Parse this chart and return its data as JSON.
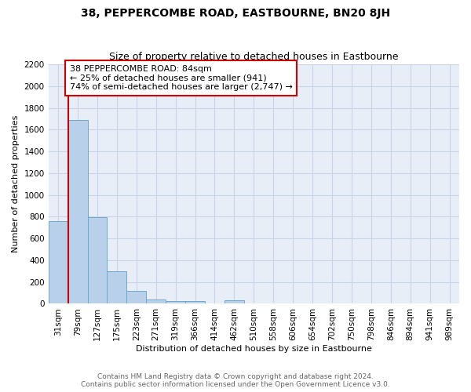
{
  "title": "38, PEPPERCOMBE ROAD, EASTBOURNE, BN20 8JH",
  "subtitle": "Size of property relative to detached houses in Eastbourne",
  "xlabel": "Distribution of detached houses by size in Eastbourne",
  "ylabel": "Number of detached properties",
  "footnote": "Contains HM Land Registry data © Crown copyright and database right 2024.\nContains public sector information licensed under the Open Government Licence v3.0.",
  "categories": [
    "31sqm",
    "79sqm",
    "127sqm",
    "175sqm",
    "223sqm",
    "271sqm",
    "319sqm",
    "366sqm",
    "414sqm",
    "462sqm",
    "510sqm",
    "558sqm",
    "606sqm",
    "654sqm",
    "702sqm",
    "750sqm",
    "798sqm",
    "846sqm",
    "894sqm",
    "941sqm",
    "989sqm"
  ],
  "values": [
    760,
    1690,
    795,
    300,
    120,
    42,
    26,
    22,
    0,
    30,
    0,
    0,
    0,
    0,
    0,
    0,
    0,
    0,
    0,
    0,
    0
  ],
  "bar_color": "#b8d0ea",
  "bar_edge_color": "#6fa8d0",
  "grid_color": "#c8d4e8",
  "background_color": "#e8eef8",
  "vline_color": "#cc0000",
  "vline_x_idx": 1,
  "annotation_line1": "38 PEPPERCOMBE ROAD: 84sqm",
  "annotation_line2": "← 25% of detached houses are smaller (941)",
  "annotation_line3": "74% of semi-detached houses are larger (2,747) →",
  "annotation_box_edgecolor": "#cc0000",
  "ylim_max": 2200,
  "yticks": [
    0,
    200,
    400,
    600,
    800,
    1000,
    1200,
    1400,
    1600,
    1800,
    2000,
    2200
  ],
  "title_fontsize": 10,
  "subtitle_fontsize": 9,
  "axis_label_fontsize": 8,
  "tick_fontsize": 7.5,
  "annotation_fontsize": 8,
  "footnote_fontsize": 6.5
}
